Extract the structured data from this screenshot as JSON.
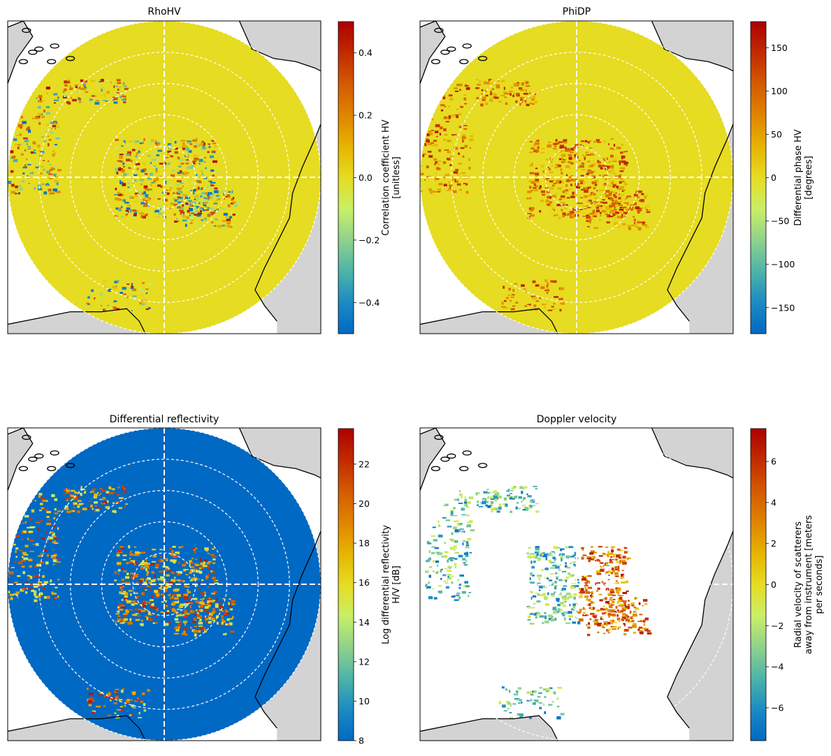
{
  "colors": {
    "land": "#d3d3d3",
    "sea": "#ffffff",
    "coast": "#000000",
    "rings": "#ffffff",
    "colormap": [
      "#0069c4",
      "#1b8bc2",
      "#4db4a8",
      "#8fd28c",
      "#c9ef66",
      "#e6dc22",
      "#e6b400",
      "#e08400",
      "#d45a00",
      "#c22a00",
      "#ad0000"
    ]
  },
  "chart_data": [
    {
      "type": "heatmap",
      "title": "RhoHV",
      "colorbar": {
        "label": [
          "Correlation coefficient HV",
          "[unitless]"
        ],
        "vmin": -0.5,
        "vmax": 0.5,
        "ticks": [
          -0.4,
          -0.2,
          0.0,
          0.2,
          0.4
        ],
        "tick_labels": [
          "−0.4",
          "−0.2",
          "0.0",
          "0.2",
          "0.4"
        ]
      },
      "background_value": 0.0,
      "range_rings": 5,
      "crosshair": true
    },
    {
      "type": "heatmap",
      "title": "PhiDP",
      "colorbar": {
        "label": [
          "Differential phase HV",
          "[degrees]"
        ],
        "vmin": -180,
        "vmax": 180,
        "ticks": [
          -150,
          -100,
          -50,
          0,
          50,
          100,
          150
        ],
        "tick_labels": [
          "−150",
          "−100",
          "−50",
          "0",
          "50",
          "100",
          "150"
        ]
      },
      "background_value": 0,
      "range_rings": 5,
      "crosshair": true
    },
    {
      "type": "heatmap",
      "title": "Differential reflectivity",
      "colorbar": {
        "label": [
          "Log differential reflectivity",
          "H/V [dB]"
        ],
        "vmin": 8,
        "vmax": 23.8,
        "ticks": [
          8,
          10,
          12,
          14,
          16,
          18,
          20,
          22
        ],
        "tick_labels": [
          "8",
          "10",
          "12",
          "14",
          "16",
          "18",
          "20",
          "22"
        ]
      },
      "background_value": 8,
      "range_rings": 5,
      "crosshair": true
    },
    {
      "type": "heatmap",
      "title": "Doppler velocity",
      "colorbar": {
        "label": [
          "Radial velocity of scatterers",
          "away from instrument [meters",
          "per seconds]"
        ],
        "vmin": -7.6,
        "vmax": 7.6,
        "ticks": [
          -6,
          -4,
          -2,
          0,
          2,
          4,
          6
        ],
        "tick_labels": [
          "−6",
          "−4",
          "−2",
          "0",
          "2",
          "4",
          "6"
        ]
      },
      "background_value": null,
      "range_rings": 5,
      "crosshair": true
    }
  ]
}
